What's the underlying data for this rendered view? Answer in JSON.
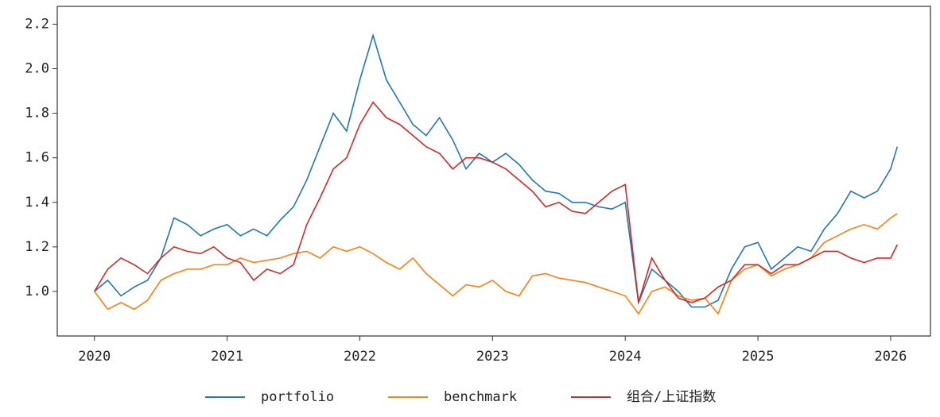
{
  "chart_data": {
    "type": "line",
    "x": [
      2020.0,
      2020.1,
      2020.2,
      2020.3,
      2020.4,
      2020.5,
      2020.6,
      2020.7,
      2020.8,
      2020.9,
      2021.0,
      2021.1,
      2021.2,
      2021.3,
      2021.4,
      2021.5,
      2021.6,
      2021.7,
      2021.8,
      2021.9,
      2022.0,
      2022.1,
      2022.2,
      2022.3,
      2022.4,
      2022.5,
      2022.6,
      2022.7,
      2022.8,
      2022.9,
      2023.0,
      2023.1,
      2023.2,
      2023.3,
      2023.4,
      2023.5,
      2023.6,
      2023.7,
      2023.8,
      2023.9,
      2024.0,
      2024.1,
      2024.2,
      2024.3,
      2024.4,
      2024.5,
      2024.6,
      2024.7,
      2024.8,
      2024.9,
      2025.0,
      2025.1,
      2025.2,
      2025.3,
      2025.4,
      2025.5,
      2025.6,
      2025.7,
      2025.8,
      2025.9,
      2026.0,
      2026.05
    ],
    "series": [
      {
        "name": "portfolio",
        "color": "#1f77b4",
        "values": [
          1.0,
          1.05,
          0.98,
          1.02,
          1.05,
          1.15,
          1.33,
          1.3,
          1.25,
          1.28,
          1.3,
          1.25,
          1.28,
          1.25,
          1.32,
          1.38,
          1.5,
          1.65,
          1.8,
          1.72,
          1.95,
          2.15,
          1.95,
          1.85,
          1.75,
          1.7,
          1.78,
          1.68,
          1.55,
          1.62,
          1.58,
          1.62,
          1.57,
          1.5,
          1.45,
          1.44,
          1.4,
          1.4,
          1.38,
          1.37,
          1.4,
          0.95,
          1.1,
          1.05,
          1.0,
          0.93,
          0.93,
          0.96,
          1.1,
          1.2,
          1.22,
          1.1,
          1.15,
          1.2,
          1.18,
          1.28,
          1.35,
          1.45,
          1.42,
          1.45,
          1.55,
          1.65
        ]
      },
      {
        "name": "benchmark",
        "color": "#ff7f0e",
        "values": [
          1.0,
          0.92,
          0.95,
          0.92,
          0.96,
          1.05,
          1.08,
          1.1,
          1.1,
          1.12,
          1.12,
          1.15,
          1.13,
          1.14,
          1.15,
          1.17,
          1.18,
          1.15,
          1.2,
          1.18,
          1.2,
          1.17,
          1.13,
          1.1,
          1.15,
          1.08,
          1.03,
          0.98,
          1.03,
          1.02,
          1.05,
          1.0,
          0.98,
          1.07,
          1.08,
          1.06,
          1.05,
          1.04,
          1.02,
          1.0,
          0.98,
          0.9,
          1.0,
          1.02,
          0.98,
          0.96,
          0.97,
          0.9,
          1.05,
          1.1,
          1.12,
          1.07,
          1.1,
          1.12,
          1.15,
          1.22,
          1.25,
          1.28,
          1.3,
          1.28,
          1.33,
          1.35
        ]
      },
      {
        "name": "组合/上证指数",
        "color": "#d62728",
        "values": [
          1.0,
          1.1,
          1.15,
          1.12,
          1.08,
          1.15,
          1.2,
          1.18,
          1.17,
          1.2,
          1.15,
          1.13,
          1.05,
          1.1,
          1.08,
          1.12,
          1.3,
          1.42,
          1.55,
          1.6,
          1.75,
          1.85,
          1.78,
          1.75,
          1.7,
          1.65,
          1.62,
          1.55,
          1.6,
          1.6,
          1.58,
          1.55,
          1.5,
          1.45,
          1.38,
          1.4,
          1.36,
          1.35,
          1.4,
          1.45,
          1.48,
          0.95,
          1.15,
          1.05,
          0.97,
          0.95,
          0.97,
          1.02,
          1.05,
          1.12,
          1.12,
          1.08,
          1.12,
          1.12,
          1.15,
          1.18,
          1.18,
          1.15,
          1.13,
          1.15,
          1.15,
          1.21
        ]
      }
    ],
    "xlim": [
      2019.72,
      2026.3
    ],
    "xticks": [
      2020,
      2021,
      2022,
      2023,
      2024,
      2025,
      2026
    ],
    "ylim": [
      0.8,
      2.28
    ],
    "yticks": [
      {
        "value": 1,
        "label": "1.0"
      },
      1.2,
      1.4,
      1.6,
      1.8,
      {
        "value": 2,
        "label": "2.0"
      },
      2.2
    ],
    "legend": "bottom"
  }
}
